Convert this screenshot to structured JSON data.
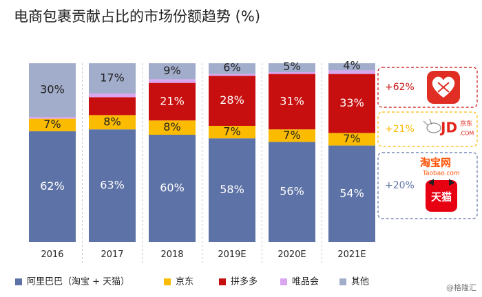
{
  "chart_data": {
    "type": "bar",
    "stacked": true,
    "title": "电商包裹贡献占比的市场份额趋势 (%)",
    "categories": [
      "2016",
      "2017",
      "2018",
      "2019E",
      "2020E",
      "2021E"
    ],
    "ylim": [
      0,
      100
    ],
    "series": [
      {
        "name": "阿里巴巴（淘宝 + 天猫）",
        "color": "#5d72a6",
        "label_color": "#ffffff",
        "values": [
          62,
          63,
          60,
          58,
          56,
          54
        ]
      },
      {
        "name": "京东",
        "color": "#fbbb00",
        "label_color": "#222222",
        "values": [
          7,
          8,
          8,
          7,
          7,
          7
        ]
      },
      {
        "name": "拼多多",
        "color": "#c80f0f",
        "label_color": "#ffffff",
        "values": [
          0,
          10,
          21,
          28,
          31,
          33
        ]
      },
      {
        "name": "唯品会",
        "color": "#d9a6f0",
        "label_color": "#222222",
        "values": [
          1,
          2,
          2,
          1,
          1,
          2
        ]
      },
      {
        "name": "其他",
        "color": "#a2adcb",
        "label_color": "#222222",
        "values": [
          30,
          17,
          9,
          6,
          5,
          4
        ]
      }
    ],
    "data_labels": [
      [
        "62%",
        "7%",
        "",
        "",
        "30%"
      ],
      [
        "63%",
        "8%",
        "",
        "",
        "17%"
      ],
      [
        "60%",
        "8%",
        "21%",
        "",
        "9%"
      ],
      [
        "58%",
        "7%",
        "28%",
        "",
        "6%"
      ],
      [
        "56%",
        "7%",
        "31%",
        "",
        "5%"
      ],
      [
        "54%",
        "7%",
        "33%",
        "",
        "4%"
      ]
    ],
    "legend_position": "bottom",
    "annotations": [
      {
        "text": "+62%",
        "color": "#c80f0f",
        "brand": "拼多多"
      },
      {
        "text": "+21%",
        "color": "#fbbb00",
        "brand": "京东"
      },
      {
        "text": "+20%",
        "color": "#5d72a6",
        "brand": "淘宝 天猫"
      }
    ]
  },
  "logos": {
    "jd_text": "JD",
    "jd_cn": "京东",
    "jd_com": ".COM",
    "taobao_cn": "淘宝网",
    "taobao_url": "Taobao.com",
    "tmall_cn": "天猫"
  },
  "watermark": "@格隆汇"
}
